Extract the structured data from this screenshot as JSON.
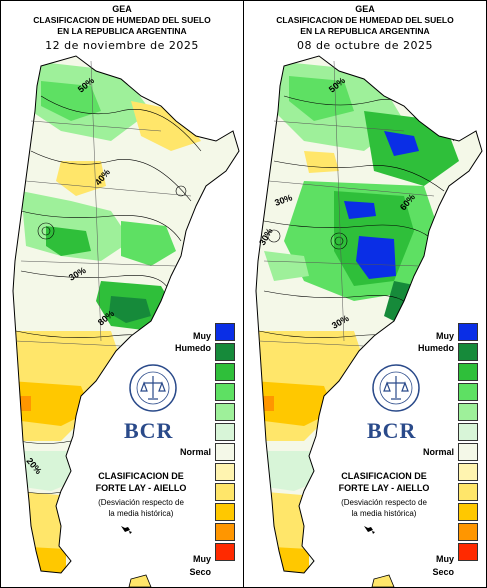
{
  "colors": {
    "muy_humedo": "#0a2ee6",
    "humedo_3": "#168a3a",
    "humedo_2": "#2fbf3a",
    "humedo_1": "#5ee063",
    "leve_humedo": "#9ef09a",
    "normal_h": "#d8f5d8",
    "normal": "#f4f8e8",
    "leve_seco": "#fff4b0",
    "seco_1": "#ffe66a",
    "seco_2": "#ffc800",
    "seco_3": "#ff9600",
    "muy_seco": "#ff2a00",
    "bcr_blue": "#2a4a8a"
  },
  "panels": [
    {
      "header": "GEA",
      "title_line1": "CLASIFICACION DE HUMEDAD DEL SUELO",
      "title_line2": "EN LA REPUBLICA ARGENTINA",
      "date": "12 de noviembre de 2025",
      "contour_labels": [
        "50%",
        "40%",
        "30%",
        "20%",
        "60%",
        "80%"
      ],
      "legend": {
        "top_label_1": "Muy",
        "top_label_2": "Humedo",
        "middle_label": "Normal",
        "bottom_label_1": "Muy",
        "bottom_label_2": "Seco"
      },
      "logo": {
        "text": "BCR",
        "seal_text": "BOLSA DE COMERCIO DE ROSARIO"
      },
      "caption": {
        "line1": "CLASIFICACION DE",
        "line2": "FORTE LAY - AIELLO",
        "line3": "(Desviación respecto de",
        "line4": "la media histórica)"
      }
    },
    {
      "header": "GEA",
      "title_line1": "CLASIFICACION DE HUMEDAD DEL SUELO",
      "title_line2": "EN LA REPUBLICA ARGENTINA",
      "date": "08 de octubre de 2025",
      "contour_labels": [
        "50%",
        "30%",
        "60%",
        "30%",
        "30%"
      ],
      "legend": {
        "top_label_1": "Muy",
        "top_label_2": "Humedo",
        "middle_label": "Normal",
        "bottom_label_1": "Muy",
        "bottom_label_2": "Seco"
      },
      "logo": {
        "text": "BCR",
        "seal_text": "BOLSA DE COMERCIO DE ROSARIO"
      },
      "caption": {
        "line1": "CLASIFICACION DE",
        "line2": "FORTE LAY - AIELLO",
        "line3": "(Desviación respecto de",
        "line4": "la media histórica)"
      }
    }
  ]
}
